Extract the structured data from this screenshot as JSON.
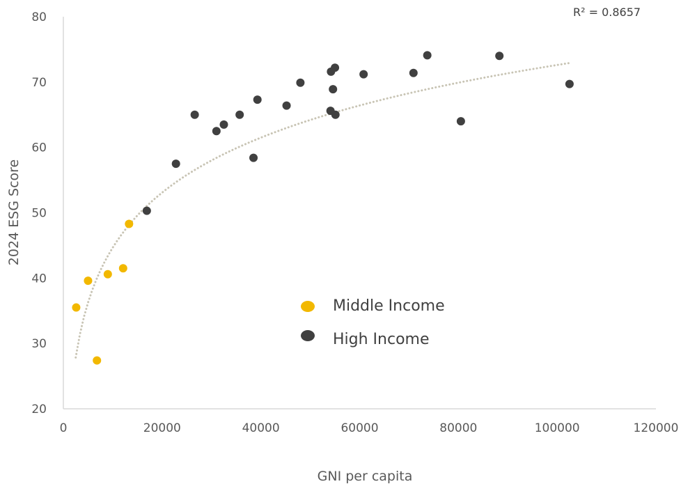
{
  "chart_data": {
    "type": "scatter",
    "title": "",
    "xlabel": "GNI per capita",
    "ylabel": "2024 ESG Score",
    "xlim": [
      0,
      120000
    ],
    "ylim": [
      20,
      80
    ],
    "x_ticks": [
      0,
      20000,
      40000,
      60000,
      80000,
      100000,
      120000
    ],
    "y_ticks": [
      20,
      30,
      40,
      50,
      60,
      70,
      80
    ],
    "x_tick_labels": [
      "0",
      "20000",
      "40000",
      "60000",
      "80000",
      "100000",
      "120000"
    ],
    "y_tick_labels": [
      "20",
      "30",
      "40",
      "50",
      "60",
      "70",
      "80"
    ],
    "grid": false,
    "legend_position": "center",
    "series": [
      {
        "name": "Middle Income",
        "color": "#F2B800",
        "points": [
          {
            "x": 2600,
            "y": 35.5
          },
          {
            "x": 5000,
            "y": 39.6
          },
          {
            "x": 6800,
            "y": 27.4
          },
          {
            "x": 9000,
            "y": 40.6
          },
          {
            "x": 12100,
            "y": 41.5
          },
          {
            "x": 13300,
            "y": 48.3
          }
        ]
      },
      {
        "name": "High Income",
        "color": "#404040",
        "points": [
          {
            "x": 16900,
            "y": 50.3
          },
          {
            "x": 22800,
            "y": 57.5
          },
          {
            "x": 26600,
            "y": 65.0
          },
          {
            "x": 31000,
            "y": 62.5
          },
          {
            "x": 32500,
            "y": 63.5
          },
          {
            "x": 35700,
            "y": 65.0
          },
          {
            "x": 38500,
            "y": 58.4
          },
          {
            "x": 39300,
            "y": 67.3
          },
          {
            "x": 45200,
            "y": 66.4
          },
          {
            "x": 48000,
            "y": 69.9
          },
          {
            "x": 54100,
            "y": 65.6
          },
          {
            "x": 54200,
            "y": 71.6
          },
          {
            "x": 54600,
            "y": 68.9
          },
          {
            "x": 55000,
            "y": 72.2
          },
          {
            "x": 55100,
            "y": 65.0
          },
          {
            "x": 60800,
            "y": 71.2
          },
          {
            "x": 70900,
            "y": 71.4
          },
          {
            "x": 73700,
            "y": 74.1
          },
          {
            "x": 80500,
            "y": 64.0
          },
          {
            "x": 88300,
            "y": 74.0
          },
          {
            "x": 102500,
            "y": 69.7
          }
        ]
      }
    ],
    "trendline": {
      "kind": "logarithmic",
      "style": "dotted",
      "color": "#C8C4B4",
      "x_range": [
        2500,
        102500
      ],
      "points": [
        {
          "x": 2500,
          "y": 27.8
        },
        {
          "x": 5000,
          "y": 36.3
        },
        {
          "x": 10000,
          "y": 44.7
        },
        {
          "x": 20000,
          "y": 53.1
        },
        {
          "x": 40000,
          "y": 61.5
        },
        {
          "x": 60000,
          "y": 66.4
        },
        {
          "x": 80000,
          "y": 69.9
        },
        {
          "x": 102500,
          "y": 72.9
        }
      ],
      "annotation": "R² = 0.8657"
    }
  }
}
